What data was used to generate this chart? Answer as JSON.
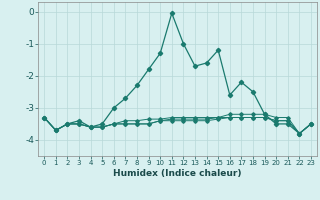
{
  "xlabel": "Humidex (Indice chaleur)",
  "x": [
    0,
    1,
    2,
    3,
    4,
    5,
    6,
    7,
    8,
    9,
    10,
    11,
    12,
    13,
    14,
    15,
    16,
    17,
    18,
    19,
    20,
    21,
    22,
    23
  ],
  "line1": [
    -3.3,
    -3.7,
    -3.5,
    -3.4,
    -3.6,
    -3.5,
    -3.0,
    -2.7,
    -2.3,
    -1.8,
    -1.3,
    -0.05,
    -1.0,
    -1.7,
    -1.6,
    -1.2,
    -2.6,
    -2.2,
    -2.5,
    -3.2,
    -3.5,
    -3.5,
    -3.8,
    -3.5
  ],
  "line2": [
    -3.3,
    -3.7,
    -3.5,
    -3.5,
    -3.6,
    -3.6,
    -3.5,
    -3.4,
    -3.4,
    -3.35,
    -3.35,
    -3.3,
    -3.3,
    -3.3,
    -3.3,
    -3.3,
    -3.3,
    -3.3,
    -3.3,
    -3.3,
    -3.4,
    -3.4,
    -3.8,
    -3.5
  ],
  "line3": [
    -3.3,
    -3.7,
    -3.5,
    -3.5,
    -3.6,
    -3.6,
    -3.5,
    -3.5,
    -3.5,
    -3.5,
    -3.4,
    -3.35,
    -3.35,
    -3.35,
    -3.35,
    -3.3,
    -3.2,
    -3.2,
    -3.2,
    -3.2,
    -3.3,
    -3.3,
    -3.8,
    -3.5
  ],
  "line4": [
    -3.3,
    -3.7,
    -3.5,
    -3.5,
    -3.6,
    -3.6,
    -3.5,
    -3.5,
    -3.5,
    -3.5,
    -3.4,
    -3.4,
    -3.4,
    -3.4,
    -3.4,
    -3.35,
    -3.3,
    -3.3,
    -3.3,
    -3.3,
    -3.4,
    -3.4,
    -3.8,
    -3.5
  ],
  "line_color": "#1a7a6e",
  "bg_color": "#d8f0f0",
  "grid_color": "#b8d8d8",
  "ylim": [
    -4.5,
    0.3
  ],
  "yticks": [
    0,
    -1,
    -2,
    -3,
    -4
  ],
  "xlim": [
    -0.5,
    23.5
  ]
}
